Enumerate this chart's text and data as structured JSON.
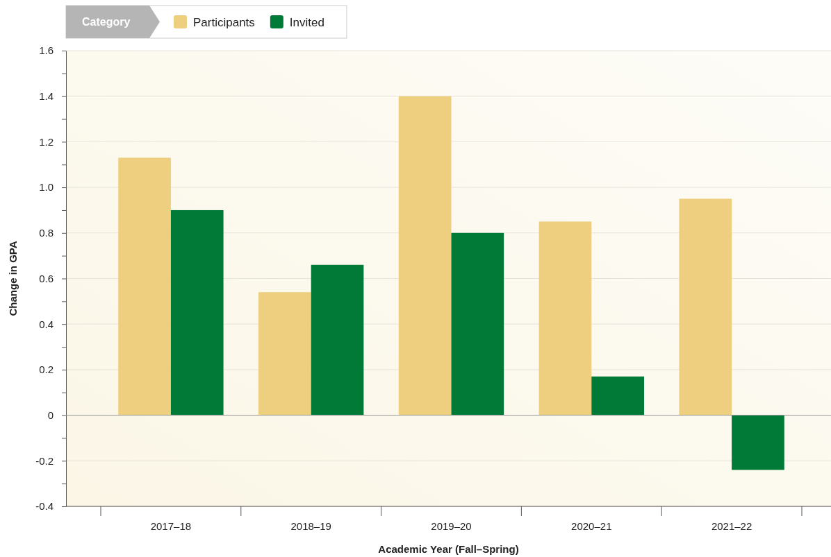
{
  "chart_data": {
    "type": "bar",
    "xlabel": "Academic Year (Fall–Spring)",
    "ylabel": "Change in GPA",
    "legend_title": "Category",
    "categories": [
      "2017–18",
      "2018–19",
      "2019–20",
      "2020–21",
      "2021–22"
    ],
    "series": [
      {
        "name": "Participants",
        "color": "#eecf7f",
        "values": [
          1.13,
          0.54,
          1.4,
          0.85,
          0.95
        ]
      },
      {
        "name": "Invited",
        "color": "#017a37",
        "values": [
          0.9,
          0.66,
          0.8,
          0.17,
          -0.24
        ]
      }
    ],
    "ylim": [
      -0.4,
      1.6
    ],
    "yticks": [
      -0.4,
      {
        "value": -0.3,
        "label": null
      },
      -0.2,
      {
        "value": -0.1,
        "label": null
      },
      0,
      {
        "value": 0.1,
        "label": null
      },
      0.2,
      {
        "value": 0.3,
        "label": null
      },
      0.4,
      {
        "value": 0.5,
        "label": null
      },
      0.6,
      {
        "value": 0.7,
        "label": null
      },
      0.8,
      {
        "value": 0.9,
        "label": null
      },
      {
        "value": 1,
        "label": "1.0"
      },
      {
        "value": 1.1,
        "label": null
      },
      1.2,
      {
        "value": 1.3,
        "label": null
      },
      1.4,
      {
        "value": 1.5,
        "label": null
      },
      1.6
    ],
    "grid": "y",
    "legend": "top left"
  }
}
